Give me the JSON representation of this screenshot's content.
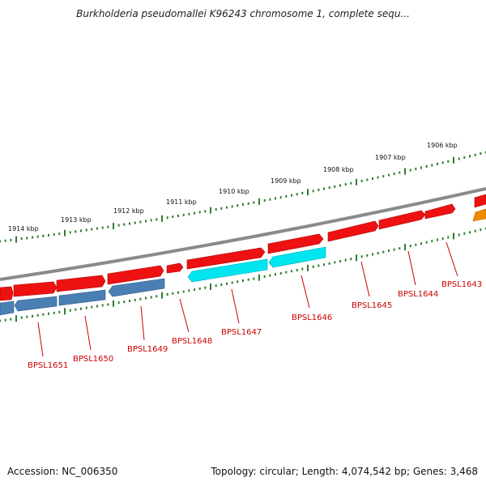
{
  "title": "Burkholderia pseudomallei K96243 chromosome 1, complete sequ...",
  "accession": "Accession: NC_006350",
  "summary": "Topology: circular; Length: 4,074,542 bp; Genes: 3,468",
  "colors": {
    "forward": "#ee1111",
    "reverse": "#4a7fb4",
    "highlight": "#00e5f0",
    "partial": "#f08a00",
    "label": "#cc0000",
    "ticks": "#2e7d2e",
    "backbone": "#808080"
  },
  "scale": {
    "labels": [
      "1914 kbp",
      "1913 kbp",
      "1912 kbp",
      "1911 kbp",
      "1910 kbp",
      "1909 kbp",
      "1908 kbp",
      "1907 kbp",
      "1906 kbp"
    ]
  },
  "genes": [
    {
      "name": "BPSL1651",
      "row": "reverse"
    },
    {
      "name": "BPSL1650",
      "row": "reverse"
    },
    {
      "name": "BPSL1649",
      "row": "reverse"
    },
    {
      "name": "BPSL1648",
      "row": "forward"
    },
    {
      "name": "BPSL1647",
      "row": "reverse"
    },
    {
      "name": "BPSL1646",
      "row": "reverse"
    },
    {
      "name": "BPSL1645",
      "row": "forward"
    },
    {
      "name": "BPSL1644",
      "row": "forward"
    },
    {
      "name": "BPSL1643",
      "row": "forward"
    }
  ]
}
